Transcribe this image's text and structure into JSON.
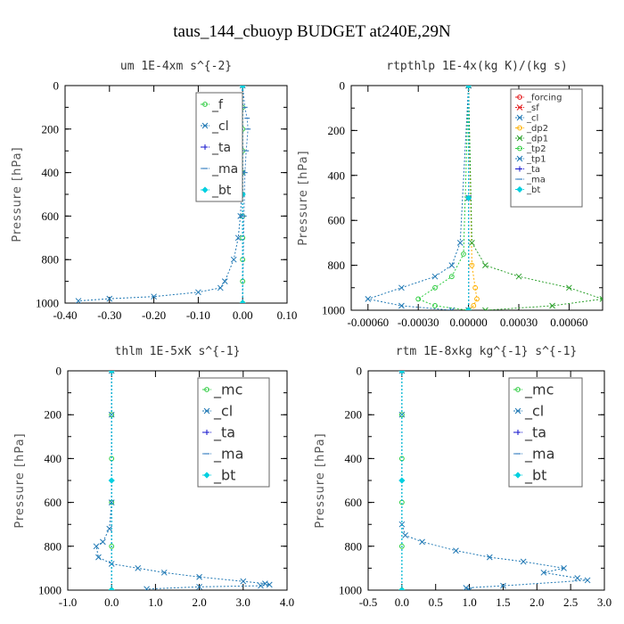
{
  "figure_title": "taus_144_cbuoyp  BUDGET at240E,29N",
  "colors": {
    "forcing": "#e41a1c",
    "sf": "#e41a1c",
    "cl": "#1f78b4",
    "mc": "#2ecc40",
    "f": "#2ecc40",
    "dp1": "#2ca02c",
    "dp2": "#ffb000",
    "tp1": "#1f78b4",
    "tp2": "#2ecc40",
    "ta": "#1010cc",
    "ma": "#3a80c0",
    "bt": "#00d0e0"
  },
  "chart_data": [
    {
      "type": "line",
      "title": "um   1E-4xm s^{-2}",
      "ylabel": "Pressure [hPa]",
      "xlim": [
        -0.4,
        0.1
      ],
      "ylim": [
        1000,
        0
      ],
      "x_ticks": [
        "-0.40",
        "-0.30",
        "-0.20",
        "-0.10",
        "0.00",
        "0.10"
      ],
      "x_tick_values": [
        -0.4,
        -0.3,
        -0.2,
        -0.1,
        0.0,
        0.1
      ],
      "y_ticks": [
        "0",
        "200",
        "400",
        "600",
        "800",
        "1000"
      ],
      "y_tick_values": [
        0,
        200,
        400,
        600,
        800,
        1000
      ],
      "legend_position": "top-right",
      "series": [
        {
          "name": "_f",
          "color_key": "f",
          "marker": "o",
          "x": [
            0.0,
            0.0,
            0.0,
            0.0,
            0.0,
            0.0,
            0.0,
            0.0,
            0.0,
            0.0,
            0.0
          ],
          "y": [
            0,
            100,
            200,
            300,
            400,
            500,
            600,
            700,
            800,
            900,
            1000
          ]
        },
        {
          "name": "_cl",
          "color_key": "cl",
          "marker": "x",
          "x": [
            0.0,
            -0.005,
            -0.01,
            -0.012,
            -0.005,
            0.0,
            -0.005,
            -0.01,
            -0.02,
            -0.04,
            -0.05,
            -0.1,
            -0.2,
            -0.3,
            -0.37
          ],
          "y": [
            0,
            100,
            150,
            200,
            300,
            400,
            600,
            700,
            800,
            900,
            930,
            950,
            970,
            980,
            990
          ]
        },
        {
          "name": "_ta",
          "color_key": "ta",
          "marker": "+",
          "x": [
            0.0,
            0.0,
            0.0
          ],
          "y": [
            0,
            500,
            1000
          ]
        },
        {
          "name": "_ma",
          "color_key": "ma",
          "marker": "dash",
          "x": [
            0.0,
            0.005,
            0.01,
            0.012,
            0.008,
            0.005,
            0.003,
            0.0
          ],
          "y": [
            0,
            100,
            150,
            200,
            300,
            400,
            600,
            1000
          ]
        },
        {
          "name": "_bt",
          "color_key": "bt",
          "marker": "d",
          "x": [
            0.0,
            0.0,
            0.0
          ],
          "y": [
            0,
            500,
            1000
          ]
        }
      ]
    },
    {
      "type": "line",
      "title": "rtpthlp   1E-4x(kg K)/(kg s)",
      "ylabel": "Pressure [hPa]",
      "xlim": [
        -0.0007,
        0.0008
      ],
      "ylim": [
        1000,
        0
      ],
      "x_ticks": [
        "-0.00060",
        "-0.00030",
        "0.00000",
        "0.00030",
        "0.00060"
      ],
      "x_tick_values": [
        -0.0006,
        -0.0003,
        0.0,
        0.0003,
        0.0006
      ],
      "y_ticks": [
        "0",
        "200",
        "400",
        "600",
        "800",
        "1000"
      ],
      "y_tick_values": [
        0,
        200,
        400,
        600,
        800,
        1000
      ],
      "legend_position": "top-right",
      "series": [
        {
          "name": "_forcing",
          "color_key": "forcing",
          "marker": "o",
          "x": [
            0.0,
            0.0,
            0.0
          ],
          "y": [
            0,
            500,
            1000
          ]
        },
        {
          "name": "_sf",
          "color_key": "sf",
          "marker": "x",
          "x": [
            0.0,
            0.0,
            0.0
          ],
          "y": [
            0,
            500,
            1000
          ]
        },
        {
          "name": "_cl",
          "color_key": "cl",
          "marker": "x",
          "x": [
            0.0,
            0.0,
            0.0
          ],
          "y": [
            0,
            500,
            1000
          ]
        },
        {
          "name": "_dp2",
          "color_key": "dp2",
          "marker": "o",
          "x": [
            0.0,
            2e-05,
            4e-05,
            5e-05,
            3e-05,
            0.0
          ],
          "y": [
            0,
            800,
            900,
            950,
            980,
            1000
          ]
        },
        {
          "name": "_dp1",
          "color_key": "dp1",
          "marker": "x",
          "x": [
            0.0,
            2e-05,
            0.0001,
            0.0003,
            0.0006,
            0.0008,
            0.0005,
            0.0001
          ],
          "y": [
            0,
            700,
            800,
            850,
            900,
            950,
            980,
            1000
          ]
        },
        {
          "name": "_tp2",
          "color_key": "tp2",
          "marker": "o",
          "x": [
            0.0,
            -3e-05,
            -0.0001,
            -0.0002,
            -0.0003,
            -0.0002,
            0.0
          ],
          "y": [
            0,
            750,
            850,
            900,
            950,
            980,
            1000
          ]
        },
        {
          "name": "_tp1",
          "color_key": "tp1",
          "marker": "x",
          "x": [
            0.0,
            -5e-05,
            -0.0001,
            -0.0002,
            -0.0004,
            -0.0006,
            -0.0004,
            -0.0001
          ],
          "y": [
            0,
            700,
            800,
            850,
            900,
            950,
            980,
            1000
          ]
        },
        {
          "name": "_ta",
          "color_key": "ta",
          "marker": "+",
          "x": [
            0.0,
            0.0,
            0.0
          ],
          "y": [
            0,
            500,
            1000
          ]
        },
        {
          "name": "_ma",
          "color_key": "ma",
          "marker": "dash",
          "x": [
            0.0,
            0.0,
            0.0
          ],
          "y": [
            0,
            500,
            1000
          ]
        },
        {
          "name": "_bt",
          "color_key": "bt",
          "marker": "d",
          "x": [
            0.0,
            0.0,
            0.0
          ],
          "y": [
            0,
            500,
            1000
          ]
        }
      ]
    },
    {
      "type": "line",
      "title": "thlm   1E-5xK s^{-1}",
      "ylabel": "Pressure [hPa]",
      "xlim": [
        -1.0,
        4.0
      ],
      "ylim": [
        1000,
        0
      ],
      "x_ticks": [
        "-1.0",
        "0.0",
        "1.0",
        "2.0",
        "3.0",
        "4.0"
      ],
      "x_tick_values": [
        -1.0,
        0.0,
        1.0,
        2.0,
        3.0,
        4.0
      ],
      "y_ticks": [
        "0",
        "200",
        "400",
        "600",
        "800",
        "1000"
      ],
      "y_tick_values": [
        0,
        200,
        400,
        600,
        800,
        1000
      ],
      "legend_position": "top-right",
      "series": [
        {
          "name": "_mc",
          "color_key": "mc",
          "marker": "o",
          "x": [
            0.0,
            0.0,
            0.0,
            0.0,
            0.0,
            0.0
          ],
          "y": [
            0,
            200,
            400,
            600,
            800,
            1000
          ]
        },
        {
          "name": "_cl",
          "color_key": "cl",
          "marker": "x",
          "x": [
            0.0,
            0.0,
            0.0,
            -0.05,
            -0.2,
            -0.35,
            -0.3,
            0.0,
            0.6,
            1.2,
            2.0,
            3.0,
            3.5,
            3.6,
            3.4,
            2.0,
            0.8
          ],
          "y": [
            0,
            200,
            600,
            720,
            780,
            800,
            850,
            880,
            900,
            920,
            940,
            960,
            970,
            975,
            980,
            985,
            995
          ]
        },
        {
          "name": "_ta",
          "color_key": "ta",
          "marker": "+",
          "x": [
            0.0,
            0.0,
            0.0
          ],
          "y": [
            0,
            500,
            1000
          ]
        },
        {
          "name": "_ma",
          "color_key": "ma",
          "marker": "dash",
          "x": [
            0.0,
            0.0,
            0.0
          ],
          "y": [
            0,
            500,
            1000
          ]
        },
        {
          "name": "_bt",
          "color_key": "bt",
          "marker": "d",
          "x": [
            0.0,
            0.0,
            0.0
          ],
          "y": [
            0,
            500,
            1000
          ]
        }
      ]
    },
    {
      "type": "line",
      "title": "rtm   1E-8xkg kg^{-1} s^{-1}",
      "ylabel": "Pressure [hPa]",
      "xlim": [
        -0.5,
        3.0
      ],
      "ylim": [
        1000,
        0
      ],
      "x_ticks": [
        "-0.5",
        "0.0",
        "0.5",
        "1.0",
        "1.5",
        "2.0",
        "2.5",
        "3.0"
      ],
      "x_tick_values": [
        -0.5,
        0.0,
        0.5,
        1.0,
        1.5,
        2.0,
        2.5,
        3.0
      ],
      "y_ticks": [
        "0",
        "200",
        "400",
        "600",
        "800",
        "1000"
      ],
      "y_tick_values": [
        0,
        200,
        400,
        600,
        800,
        1000
      ],
      "legend_position": "top-right",
      "series": [
        {
          "name": "_mc",
          "color_key": "mc",
          "marker": "o",
          "x": [
            0.0,
            0.0,
            0.0,
            0.0,
            0.0,
            0.0
          ],
          "y": [
            0,
            200,
            400,
            600,
            800,
            1000
          ]
        },
        {
          "name": "_cl",
          "color_key": "cl",
          "marker": "x",
          "x": [
            0.0,
            0.0,
            0.0,
            0.05,
            0.3,
            0.8,
            1.3,
            1.8,
            2.4,
            2.1,
            2.6,
            2.75,
            1.5,
            0.95,
            1.0
          ],
          "y": [
            0,
            200,
            700,
            750,
            780,
            820,
            850,
            870,
            900,
            920,
            945,
            955,
            980,
            990,
            1000
          ]
        },
        {
          "name": "_ta",
          "color_key": "ta",
          "marker": "+",
          "x": [
            0.0,
            0.0,
            0.0
          ],
          "y": [
            0,
            500,
            1000
          ]
        },
        {
          "name": "_ma",
          "color_key": "ma",
          "marker": "dash",
          "x": [
            0.0,
            0.0,
            0.0
          ],
          "y": [
            0,
            500,
            1000
          ]
        },
        {
          "name": "_bt",
          "color_key": "bt",
          "marker": "d",
          "x": [
            0.0,
            0.0,
            0.0
          ],
          "y": [
            0,
            500,
            1000
          ]
        }
      ]
    }
  ]
}
